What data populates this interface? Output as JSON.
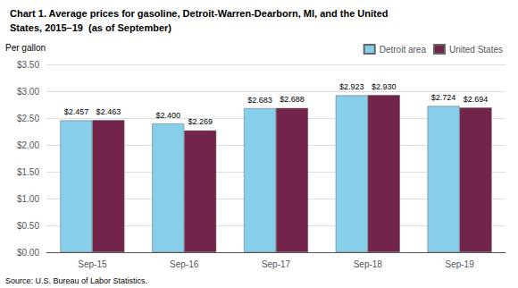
{
  "chart_data": {
    "type": "bar",
    "title": "Chart 1. Average prices for gasoline, Detroit-Warren-Dearborn, MI, and the United",
    "subtitle": "States, 2015–19  (as of September)",
    "ylabel": "Per gallon",
    "source": "Source: U.S. Bureau of Labor Statistics.",
    "categories": [
      "Sep-15",
      "Sep-16",
      "Sep-17",
      "Sep-18",
      "Sep-19"
    ],
    "series": [
      {
        "name": "Detroit area",
        "color": "#87CEEB",
        "values": [
          2.457,
          2.4,
          2.683,
          2.923,
          2.724
        ],
        "value_labels": [
          "$2.457",
          "$2.400",
          "$2.683",
          "$2.923",
          "$2.724"
        ]
      },
      {
        "name": "United States",
        "color": "#72244A",
        "values": [
          2.463,
          2.269,
          2.688,
          2.93,
          2.694
        ],
        "value_labels": [
          "$2.463",
          "$2.269",
          "$2.688",
          "$2.930",
          "$2.694"
        ]
      }
    ],
    "ylim": [
      0,
      3.5
    ],
    "yticks": [
      {
        "value": 0,
        "label": "$0.00"
      },
      {
        "value": 0.5,
        "label": "$0.50"
      },
      {
        "value": 1,
        "label": "$1.00"
      },
      {
        "value": 1.5,
        "label": "$1.50"
      },
      {
        "value": 2,
        "label": "$2.00"
      },
      {
        "value": 2.5,
        "label": "$2.50"
      },
      {
        "value": 3,
        "label": "$3.00"
      },
      {
        "value": 3.5,
        "label": "$3.50"
      }
    ],
    "grid": true,
    "legend": "upper right",
    "data_labels": true
  }
}
